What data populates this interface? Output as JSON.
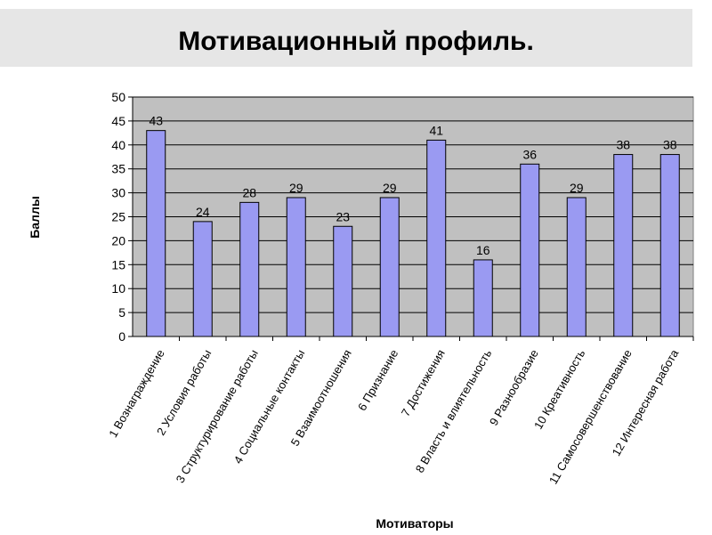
{
  "slide": {
    "title": "Мотивационный профиль."
  },
  "chart_data": {
    "type": "bar",
    "title": "",
    "xlabel": "Мотиваторы",
    "ylabel": "Баллы",
    "ylim": [
      0,
      50
    ],
    "yticks": [
      0,
      5,
      10,
      15,
      20,
      25,
      30,
      35,
      40,
      45,
      50
    ],
    "grid": true,
    "categories": [
      "1 Вознаграждение",
      "2 Условия работы",
      "3 Структурирование работы",
      "4 Социальные контакты",
      "5 Взаимоотношения",
      "6 Признание",
      "7 Достижения",
      "8 Власть и влиятельность",
      "9 Разнообразие",
      "10 Креативность",
      "11 Самосовершенствование",
      "12 Интересная работа"
    ],
    "values": [
      43,
      24,
      28,
      29,
      23,
      29,
      41,
      16,
      36,
      29,
      38,
      38
    ],
    "colors": {
      "bar_fill": "#9a9af2",
      "bar_stroke": "#000000",
      "plot_background": "#c0c0c0",
      "gridline": "#000000"
    }
  }
}
